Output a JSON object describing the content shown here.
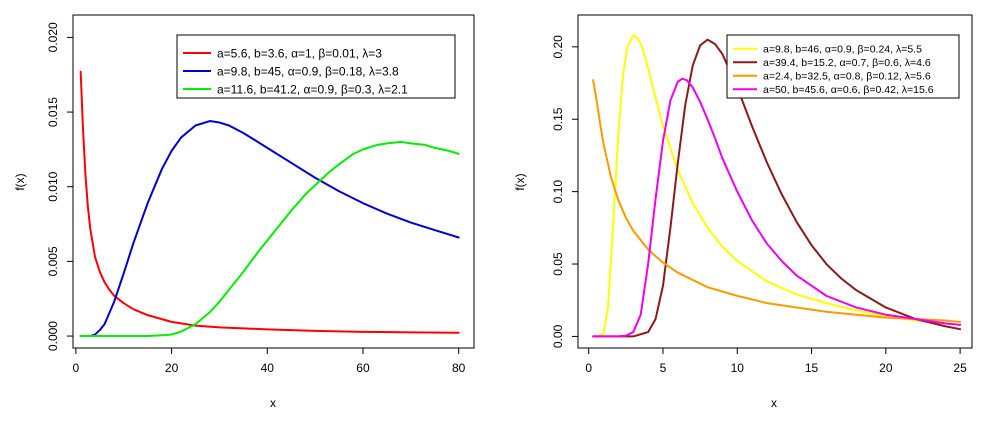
{
  "chart_data": [
    {
      "type": "line",
      "xlabel": "x",
      "ylabel": "f(x)",
      "xlim": [
        -0.6,
        83.2
      ],
      "ylim": [
        -0.0008,
        0.0215
      ],
      "x_ticks": [
        "0",
        "20",
        "40",
        "60",
        "80"
      ],
      "y_ticks": [
        "0.000",
        "0.005",
        "0.010",
        "0.015",
        "0.020"
      ],
      "legend_position": "top-right",
      "series": [
        {
          "name": "a=5.6, b=3.6, α=1, β=0.01, λ=3",
          "color": "#ff0000",
          "x": [
            1,
            1.5,
            2,
            2.5,
            3,
            4,
            5,
            6,
            7,
            8,
            10,
            12,
            15,
            20,
            25,
            30,
            40,
            50,
            60,
            70,
            80
          ],
          "y": [
            0.0177,
            0.0138,
            0.0108,
            0.0087,
            0.0072,
            0.0053,
            0.0043,
            0.0036,
            0.0031,
            0.0027,
            0.0022,
            0.0018,
            0.0014,
            0.00095,
            0.0007,
            0.00058,
            0.00045,
            0.00035,
            0.00028,
            0.00025,
            0.00022
          ]
        },
        {
          "name": "a=9.8, b=45, α=0.9, β=0.18, λ=3.8",
          "color": "#0000cc",
          "x": [
            1,
            2,
            3,
            4,
            5,
            6,
            8,
            10,
            12,
            15,
            18,
            20,
            22,
            25,
            28,
            30,
            32,
            35,
            40,
            45,
            50,
            55,
            60,
            65,
            70,
            75,
            80
          ],
          "y": [
            0,
            0,
            0,
            0.0001,
            0.0004,
            0.0008,
            0.0023,
            0.0042,
            0.0062,
            0.0089,
            0.0112,
            0.0124,
            0.0133,
            0.0141,
            0.0144,
            0.0143,
            0.0141,
            0.0136,
            0.0126,
            0.0116,
            0.0106,
            0.0097,
            0.0089,
            0.0082,
            0.0076,
            0.0071,
            0.0066
          ]
        },
        {
          "name": "a=11.6, b=41.2, α=0.9, β=0.3, λ=2.1",
          "color": "#00ee00",
          "x": [
            1,
            5,
            10,
            15,
            18,
            20,
            22,
            25,
            28,
            30,
            33,
            35,
            38,
            40,
            43,
            45,
            48,
            50,
            53,
            55,
            58,
            60,
            63,
            65,
            68,
            70,
            73,
            75,
            78,
            80
          ],
          "y": [
            0,
            0,
            0,
            0,
            5e-05,
            0.0001,
            0.0003,
            0.0008,
            0.0016,
            0.0023,
            0.0035,
            0.0043,
            0.0056,
            0.0064,
            0.0076,
            0.0084,
            0.0095,
            0.0101,
            0.011,
            0.0115,
            0.0122,
            0.0125,
            0.0128,
            0.0129,
            0.013,
            0.0129,
            0.0128,
            0.0126,
            0.0124,
            0.0122
          ]
        }
      ]
    },
    {
      "type": "line",
      "xlabel": "x",
      "ylabel": "f(x)",
      "xlim": [
        -0.72,
        25.8
      ],
      "ylim": [
        -0.008,
        0.222
      ],
      "x_ticks": [
        "0",
        "5",
        "10",
        "15",
        "20",
        "25"
      ],
      "y_ticks": [
        "0.00",
        "0.05",
        "0.10",
        "0.15",
        "0.20"
      ],
      "legend_position": "top-right",
      "series": [
        {
          "name": "a=9.8, b=46, α=0.9, β=0.24, λ=5.5",
          "color": "#ffff00",
          "x": [
            0.3,
            0.6,
            1,
            1.3,
            1.6,
            2,
            2.3,
            2.6,
            3,
            3.3,
            3.6,
            4,
            4.5,
            5,
            6,
            7,
            8,
            9,
            10,
            12,
            14,
            16,
            18,
            20,
            22,
            24,
            25
          ],
          "y": [
            0,
            0,
            0.002,
            0.02,
            0.07,
            0.14,
            0.18,
            0.2,
            0.208,
            0.206,
            0.2,
            0.185,
            0.165,
            0.145,
            0.115,
            0.092,
            0.075,
            0.062,
            0.052,
            0.038,
            0.029,
            0.023,
            0.018,
            0.014,
            0.011,
            0.009,
            0.008
          ]
        },
        {
          "name": "a=39.4, b=15.2, α=0.7, β=0.6, λ=4.6",
          "color": "#8b1a1a",
          "x": [
            0.3,
            2,
            3,
            4,
            4.5,
            5,
            5.5,
            6,
            6.5,
            7,
            7.5,
            8,
            8.5,
            9,
            10,
            11,
            12,
            13,
            14,
            15,
            16,
            17,
            18,
            20,
            22,
            24,
            25
          ],
          "y": [
            0,
            0,
            0,
            0.003,
            0.012,
            0.035,
            0.075,
            0.12,
            0.16,
            0.187,
            0.201,
            0.205,
            0.202,
            0.195,
            0.172,
            0.145,
            0.12,
            0.098,
            0.079,
            0.063,
            0.05,
            0.04,
            0.032,
            0.02,
            0.012,
            0.007,
            0.005
          ]
        },
        {
          "name": "a=2.4, b=32.5, α=0.8, β=0.12, λ=5.6",
          "color": "#ff9900",
          "x": [
            0.3,
            0.5,
            0.8,
            1,
            1.5,
            2,
            2.5,
            3,
            4,
            5,
            6,
            7,
            8,
            10,
            12,
            14,
            16,
            18,
            20,
            22,
            24,
            25
          ],
          "y": [
            0.177,
            0.165,
            0.145,
            0.133,
            0.11,
            0.094,
            0.082,
            0.073,
            0.06,
            0.051,
            0.044,
            0.039,
            0.034,
            0.028,
            0.023,
            0.02,
            0.017,
            0.015,
            0.013,
            0.012,
            0.011,
            0.01
          ]
        },
        {
          "name": "a=50, b=45.6, α=0.6, β=0.42, λ=15.6",
          "color": "#ee00ee",
          "x": [
            0.3,
            2,
            2.5,
            3,
            3.5,
            4,
            4.5,
            5,
            5.5,
            6,
            6.3,
            6.6,
            7,
            7.5,
            8,
            8.5,
            9,
            10,
            11,
            12,
            13,
            14,
            16,
            18,
            20,
            22,
            24,
            25
          ],
          "y": [
            0,
            0,
            0.0005,
            0.003,
            0.015,
            0.05,
            0.095,
            0.135,
            0.163,
            0.176,
            0.178,
            0.177,
            0.172,
            0.162,
            0.15,
            0.137,
            0.123,
            0.1,
            0.08,
            0.064,
            0.052,
            0.042,
            0.028,
            0.02,
            0.015,
            0.012,
            0.009,
            0.008
          ]
        }
      ]
    }
  ]
}
